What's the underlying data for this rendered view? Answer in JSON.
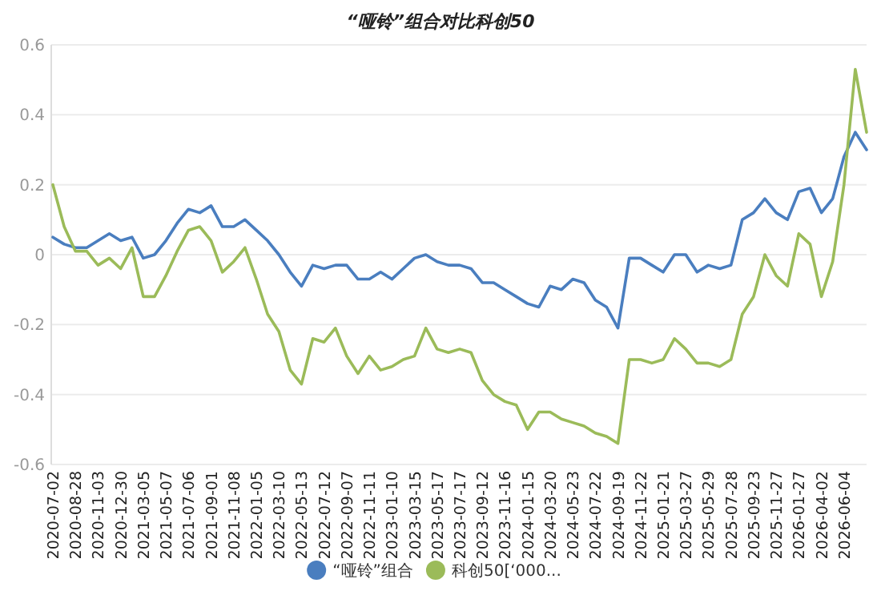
{
  "chart_data": {
    "type": "line",
    "title": "“哑铃”组合对比科创50",
    "categories": [
      "2020-07-02",
      null,
      "2020-08-28",
      null,
      "2020-11-03",
      null,
      "2020-12-30",
      null,
      "2021-03-05",
      null,
      "2021-05-07",
      null,
      "2021-07-06",
      null,
      "2021-09-01",
      null,
      "2021-11-08",
      null,
      "2022-01-05",
      null,
      "2022-03-10",
      null,
      "2022-05-13",
      null,
      "2022-07-12",
      null,
      "2022-09-07",
      null,
      "2022-11-11",
      null,
      "2023-01-10",
      null,
      "2023-03-15",
      null,
      "2023-05-17",
      null,
      "2023-07-17",
      null,
      "2023-09-12",
      null,
      "2023-11-16",
      null,
      "2024-01-15",
      null,
      "2024-03-20",
      null,
      "2024-05-23",
      null,
      "2024-07-22",
      null,
      "2024-09-19",
      null,
      "2024-11-22",
      null,
      "2025-01-21",
      null,
      "2025-03-27",
      null,
      "2025-05-29",
      null,
      "2025-07-28",
      null,
      "2025-09-23",
      null,
      "2025-11-27",
      null,
      "2026-01-27",
      null,
      "2026-04-02",
      null,
      "2026-06-04",
      null,
      null
    ],
    "series": [
      {
        "name": "“哑铃”组合",
        "color": "#4a7ebf",
        "values": [
          0.05,
          0.03,
          0.02,
          0.02,
          0.04,
          0.06,
          0.04,
          0.05,
          -0.01,
          0,
          0.04,
          0.09,
          0.13,
          0.12,
          0.14,
          0.08,
          0.08,
          0.1,
          0.07,
          0.04,
          0,
          -0.05,
          -0.09,
          -0.03,
          -0.04,
          -0.03,
          -0.03,
          -0.07,
          -0.07,
          -0.05,
          -0.07,
          -0.04,
          -0.01,
          0,
          -0.02,
          -0.03,
          -0.03,
          -0.04,
          -0.08,
          -0.08,
          -0.1,
          -0.12,
          -0.14,
          -0.15,
          -0.09,
          -0.1,
          -0.07,
          -0.08,
          -0.13,
          -0.15,
          -0.21,
          -0.01,
          -0.01,
          -0.03,
          -0.05,
          0,
          0,
          -0.05,
          -0.03,
          -0.04,
          -0.03,
          0.1,
          0.12,
          0.16,
          0.12,
          0.1,
          0.18,
          0.19,
          0.12,
          0.16,
          0.28,
          0.35,
          0.3
        ]
      },
      {
        "name": "科创50[‘000...",
        "color": "#9bbb59",
        "values": [
          0.2,
          0.08,
          0.01,
          0.01,
          -0.03,
          -0.01,
          -0.04,
          0.02,
          -0.12,
          -0.12,
          -0.06,
          0.01,
          0.07,
          0.08,
          0.04,
          -0.05,
          -0.02,
          0.02,
          -0.07,
          -0.17,
          -0.22,
          -0.33,
          -0.37,
          -0.24,
          -0.25,
          -0.21,
          -0.29,
          -0.34,
          -0.29,
          -0.33,
          -0.32,
          -0.3,
          -0.29,
          -0.21,
          -0.27,
          -0.28,
          -0.27,
          -0.28,
          -0.36,
          -0.4,
          -0.42,
          -0.43,
          -0.5,
          -0.45,
          -0.45,
          -0.47,
          -0.48,
          -0.49,
          -0.51,
          -0.52,
          -0.54,
          -0.3,
          -0.3,
          -0.31,
          -0.3,
          -0.24,
          -0.27,
          -0.31,
          -0.31,
          -0.32,
          -0.3,
          -0.17,
          -0.12,
          0,
          -0.06,
          -0.09,
          0.06,
          0.03,
          -0.12,
          -0.02,
          0.2,
          0.53,
          0.35
        ]
      }
    ],
    "ylim": [
      -0.6,
      0.6
    ],
    "yticks": [
      -0.6,
      -0.4,
      -0.2,
      0,
      0.2,
      0.4,
      0.6
    ],
    "grid": "y",
    "legend": "bottom"
  }
}
